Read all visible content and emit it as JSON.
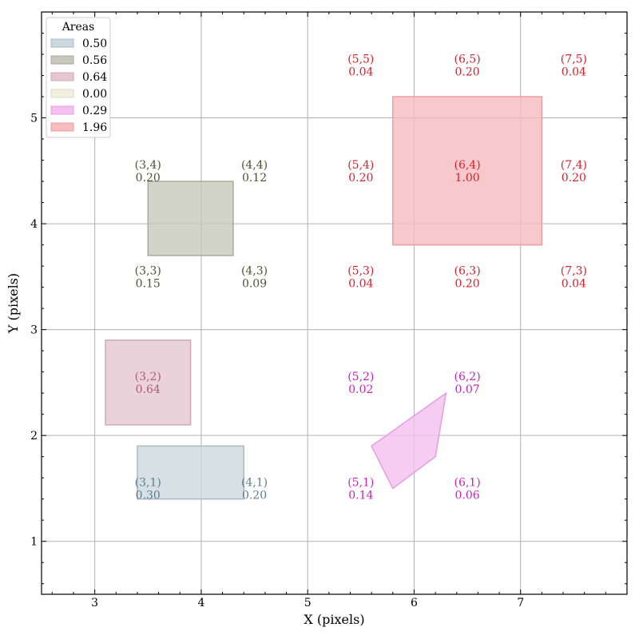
{
  "chart_data": {
    "type": "area-shapes",
    "xlabel": "X (pixels)",
    "ylabel": "Y (pixels)",
    "xlim": [
      2.5,
      8.0
    ],
    "ylim": [
      0.5,
      6.0
    ],
    "xticks": [
      3,
      4,
      5,
      6,
      7
    ],
    "yticks": [
      1,
      2,
      3,
      4,
      5
    ],
    "grid": true,
    "legend": {
      "title": "Areas",
      "placement": "top-left",
      "entries": [
        {
          "label": "0.50",
          "fill": "#ccd8de",
          "stroke": "#a9bcc4"
        },
        {
          "label": "0.56",
          "fill": "#c7c8bb",
          "stroke": "#a9aa98"
        },
        {
          "label": "0.64",
          "fill": "#e4c7d1",
          "stroke": "#cfa9b6"
        },
        {
          "label": "0.00",
          "fill": "#f1f1e1",
          "stroke": "#d8d8c3"
        },
        {
          "label": "0.29",
          "fill": "#f3c0f0",
          "stroke": "#e79be3"
        },
        {
          "label": "1.96",
          "fill": "#f6bcbf",
          "stroke": "#eb9ea2"
        }
      ]
    },
    "shapes": [
      {
        "name": "shape-area-0-50",
        "fill": "#ccd8de",
        "stroke": "#a9bcc4",
        "points": [
          [
            3.4,
            1.4
          ],
          [
            4.4,
            1.4
          ],
          [
            4.4,
            1.9
          ],
          [
            3.4,
            1.9
          ]
        ]
      },
      {
        "name": "shape-area-0-56",
        "fill": "#c7c8bb",
        "stroke": "#a9aa98",
        "points": [
          [
            3.5,
            3.7
          ],
          [
            4.3,
            3.7
          ],
          [
            4.3,
            4.4
          ],
          [
            3.5,
            4.4
          ]
        ]
      },
      {
        "name": "shape-area-0-64",
        "fill": "#e4c7d1",
        "stroke": "#cfa9b6",
        "points": [
          [
            3.1,
            2.1
          ],
          [
            3.9,
            2.1
          ],
          [
            3.9,
            2.9
          ],
          [
            3.1,
            2.9
          ]
        ]
      },
      {
        "name": "shape-area-0-29",
        "fill": "#f3c0f0",
        "stroke": "#e79be3",
        "points": [
          [
            5.6,
            1.9
          ],
          [
            6.3,
            2.4
          ],
          [
            6.2,
            1.8
          ],
          [
            5.8,
            1.5
          ]
        ]
      },
      {
        "name": "shape-area-1-96",
        "fill": "#f6bcbf",
        "stroke": "#eb9ea2",
        "points": [
          [
            5.8,
            3.8
          ],
          [
            7.2,
            3.8
          ],
          [
            7.2,
            5.2
          ],
          [
            5.8,
            5.2
          ]
        ]
      }
    ],
    "cell_labels": [
      {
        "cell": "(3,1)",
        "value": "0.30",
        "x": 3.5,
        "y": 1.5,
        "color": "#5b7e8e"
      },
      {
        "cell": "(4,1)",
        "value": "0.20",
        "x": 4.5,
        "y": 1.5,
        "color": "#5b7e8e"
      },
      {
        "cell": "(3,2)",
        "value": "0.64",
        "x": 3.5,
        "y": 2.5,
        "color": "#b6587a"
      },
      {
        "cell": "(3,3)",
        "value": "0.15",
        "x": 3.5,
        "y": 3.5,
        "color": "#4f5234"
      },
      {
        "cell": "(4,3)",
        "value": "0.09",
        "x": 4.5,
        "y": 3.5,
        "color": "#4f5234"
      },
      {
        "cell": "(3,4)",
        "value": "0.20",
        "x": 3.5,
        "y": 4.5,
        "color": "#4f5234"
      },
      {
        "cell": "(4,4)",
        "value": "0.12",
        "x": 4.5,
        "y": 4.5,
        "color": "#4f5234"
      },
      {
        "cell": "(5,1)",
        "value": "0.14",
        "x": 5.5,
        "y": 1.5,
        "color": "#cc1fbf"
      },
      {
        "cell": "(6,1)",
        "value": "0.06",
        "x": 6.5,
        "y": 1.5,
        "color": "#cc1fbf"
      },
      {
        "cell": "(5,2)",
        "value": "0.02",
        "x": 5.5,
        "y": 2.5,
        "color": "#cc1fbf"
      },
      {
        "cell": "(6,2)",
        "value": "0.07",
        "x": 6.5,
        "y": 2.5,
        "color": "#cc1fbf"
      },
      {
        "cell": "(5,3)",
        "value": "0.04",
        "x": 5.5,
        "y": 3.5,
        "color": "#d9202c"
      },
      {
        "cell": "(6,3)",
        "value": "0.20",
        "x": 6.5,
        "y": 3.5,
        "color": "#d9202c"
      },
      {
        "cell": "(7,3)",
        "value": "0.04",
        "x": 7.5,
        "y": 3.5,
        "color": "#d9202c"
      },
      {
        "cell": "(5,4)",
        "value": "0.20",
        "x": 5.5,
        "y": 4.5,
        "color": "#d9202c"
      },
      {
        "cell": "(6,4)",
        "value": "1.00",
        "x": 6.5,
        "y": 4.5,
        "color": "#d9202c"
      },
      {
        "cell": "(7,4)",
        "value": "0.20",
        "x": 7.5,
        "y": 4.5,
        "color": "#d9202c"
      },
      {
        "cell": "(5,5)",
        "value": "0.04",
        "x": 5.5,
        "y": 5.5,
        "color": "#d9202c"
      },
      {
        "cell": "(6,5)",
        "value": "0.20",
        "x": 6.5,
        "y": 5.5,
        "color": "#d9202c"
      },
      {
        "cell": "(7,5)",
        "value": "0.04",
        "x": 7.5,
        "y": 5.5,
        "color": "#d9202c"
      }
    ]
  }
}
